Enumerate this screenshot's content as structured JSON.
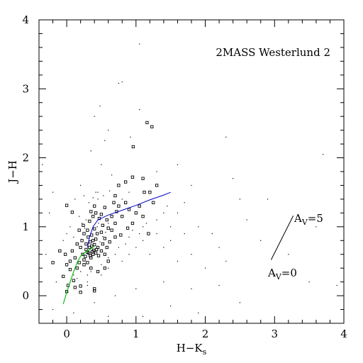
{
  "chart_data": {
    "type": "scatter",
    "title": "2MASS Westerlund 2",
    "xlabel": "H−K",
    "xlabel_sub": "s",
    "ylabel": "J−H",
    "xlim": [
      -0.4,
      4.0
    ],
    "ylim": [
      -0.4,
      4.0
    ],
    "xticks": [
      0,
      1,
      2,
      3,
      4
    ],
    "yticks": [
      0,
      1,
      2,
      3,
      4
    ],
    "xtick_labels": [
      "0",
      "1",
      "2",
      "3",
      "4"
    ],
    "ytick_labels": [
      "0",
      "1",
      "2",
      "3",
      "4"
    ],
    "grid": false,
    "colors": {
      "axes": "#000000",
      "giant_branch": "#0000cc",
      "dwarf_sequence": "#00bb00"
    },
    "reddening_vector": {
      "start_label_main": "A",
      "start_label_sub": "V",
      "start_label_rest": "=0",
      "end_label_main": "A",
      "end_label_sub": "V",
      "end_label_rest": "=5",
      "start": [
        2.95,
        0.52
      ],
      "end": [
        3.27,
        1.16
      ]
    },
    "giant_branch": [
      [
        0.3,
        0.7
      ],
      [
        0.33,
        0.85
      ],
      [
        0.38,
        1.0
      ],
      [
        0.45,
        1.1
      ],
      [
        0.6,
        1.17
      ],
      [
        0.8,
        1.24
      ],
      [
        1.0,
        1.31
      ],
      [
        1.2,
        1.39
      ],
      [
        1.4,
        1.46
      ],
      [
        1.5,
        1.5
      ]
    ],
    "dwarf_sequence": [
      [
        -0.05,
        -0.12
      ],
      [
        0.0,
        0.05
      ],
      [
        0.05,
        0.2
      ],
      [
        0.1,
        0.35
      ],
      [
        0.15,
        0.48
      ],
      [
        0.2,
        0.57
      ],
      [
        0.25,
        0.62
      ],
      [
        0.3,
        0.65
      ],
      [
        0.35,
        0.68
      ],
      [
        0.4,
        0.72
      ]
    ],
    "members": [
      [
        0.0,
        1.31
      ],
      [
        0.08,
        1.21
      ],
      [
        -0.1,
        0.65
      ],
      [
        -0.2,
        0.48
      ],
      [
        0.0,
        0.45
      ],
      [
        0.05,
        0.38
      ],
      [
        -0.05,
        0.28
      ],
      [
        0.02,
        0.15
      ],
      [
        0.12,
        0.12
      ],
      [
        0.1,
        0.22
      ],
      [
        0.2,
        0.14
      ],
      [
        0.2,
        0.05
      ],
      [
        0.4,
        0.1
      ],
      [
        0.4,
        0.07
      ],
      [
        0.0,
        0.06
      ],
      [
        0.3,
        0.48
      ],
      [
        0.25,
        0.52
      ],
      [
        0.35,
        0.55
      ],
      [
        0.38,
        0.6
      ],
      [
        0.42,
        0.62
      ],
      [
        0.3,
        0.63
      ],
      [
        0.28,
        0.67
      ],
      [
        0.33,
        0.7
      ],
      [
        0.36,
        0.72
      ],
      [
        0.4,
        0.74
      ],
      [
        0.45,
        0.7
      ],
      [
        0.28,
        0.75
      ],
      [
        0.34,
        0.78
      ],
      [
        0.38,
        0.8
      ],
      [
        0.42,
        0.82
      ],
      [
        0.31,
        0.85
      ],
      [
        0.36,
        0.88
      ],
      [
        0.44,
        0.9
      ],
      [
        0.25,
        0.9
      ],
      [
        0.3,
        0.95
      ],
      [
        0.4,
        0.97
      ],
      [
        0.5,
        0.92
      ],
      [
        0.22,
        0.8
      ],
      [
        0.2,
        0.7
      ],
      [
        0.23,
        0.6
      ],
      [
        0.46,
        0.58
      ],
      [
        0.5,
        0.65
      ],
      [
        0.52,
        0.75
      ],
      [
        0.55,
        0.83
      ],
      [
        0.27,
        0.57
      ],
      [
        0.34,
        0.58
      ],
      [
        0.39,
        0.66
      ],
      [
        0.32,
        0.62
      ],
      [
        0.37,
        0.64
      ],
      [
        0.43,
        0.67
      ],
      [
        0.15,
        0.75
      ],
      [
        0.18,
        0.95
      ],
      [
        0.24,
        1.02
      ],
      [
        0.33,
        1.08
      ],
      [
        0.38,
        1.15
      ],
      [
        0.42,
        1.2
      ],
      [
        0.47,
        1.12
      ],
      [
        0.52,
        1.02
      ],
      [
        0.58,
        1.1
      ],
      [
        0.6,
        0.98
      ],
      [
        0.65,
        1.15
      ],
      [
        0.7,
        1.05
      ],
      [
        0.72,
        1.22
      ],
      [
        0.75,
        1.3
      ],
      [
        0.68,
        1.35
      ],
      [
        0.55,
        1.28
      ],
      [
        0.5,
        1.18
      ],
      [
        0.4,
        1.3
      ],
      [
        0.35,
        1.22
      ],
      [
        0.8,
        1.15
      ],
      [
        0.85,
        1.35
      ],
      [
        0.9,
        1.25
      ],
      [
        1.0,
        1.2
      ],
      [
        1.05,
        1.3
      ],
      [
        1.1,
        1.15
      ],
      [
        0.95,
        1.05
      ],
      [
        0.88,
        0.98
      ],
      [
        0.78,
        0.88
      ],
      [
        0.7,
        0.85
      ],
      [
        0.62,
        0.78
      ],
      [
        0.58,
        0.7
      ],
      [
        0.65,
        0.95
      ],
      [
        0.75,
        1.6
      ],
      [
        0.7,
        1.45
      ],
      [
        0.85,
        1.65
      ],
      [
        0.95,
        1.72
      ],
      [
        1.1,
        1.7
      ],
      [
        1.2,
        1.5
      ],
      [
        1.3,
        1.6
      ],
      [
        0.96,
        2.16
      ],
      [
        1.16,
        2.51
      ],
      [
        1.23,
        2.45
      ],
      [
        1.12,
        1.5
      ],
      [
        1.25,
        1.35
      ],
      [
        1.18,
        0.9
      ],
      [
        0.6,
        0.5
      ],
      [
        0.55,
        0.4
      ],
      [
        0.45,
        0.35
      ],
      [
        0.35,
        0.4
      ],
      [
        0.25,
        0.45
      ],
      [
        0.55,
        0.6
      ],
      [
        0.15,
        0.4
      ],
      [
        0.05,
        0.5
      ],
      [
        -0.02,
        0.6
      ],
      [
        0.08,
        0.65
      ],
      [
        0.12,
        0.55
      ],
      [
        0.18,
        0.48
      ]
    ],
    "field": [
      [
        0.1,
        0.3
      ],
      [
        0.3,
        0.2
      ],
      [
        0.5,
        0.3
      ],
      [
        0.6,
        0.4
      ],
      [
        0.8,
        0.5
      ],
      [
        0.9,
        0.6
      ],
      [
        1.0,
        0.7
      ],
      [
        1.1,
        0.8
      ],
      [
        1.2,
        0.6
      ],
      [
        1.3,
        0.9
      ],
      [
        1.4,
        0.7
      ],
      [
        1.5,
        0.8
      ],
      [
        1.6,
        0.5
      ],
      [
        1.7,
        0.9
      ],
      [
        1.8,
        0.6
      ],
      [
        1.9,
        1.0
      ],
      [
        2.0,
        0.4
      ],
      [
        2.1,
        0.9
      ],
      [
        2.2,
        0.7
      ],
      [
        2.3,
        0.5
      ],
      [
        1.3,
        1.8
      ],
      [
        1.6,
        1.9
      ],
      [
        1.8,
        1.6
      ],
      [
        2.3,
        2.3
      ],
      [
        2.4,
        1.7
      ],
      [
        2.5,
        1.4
      ],
      [
        2.6,
        1.1
      ],
      [
        2.8,
        0.8
      ],
      [
        2.9,
        1.4
      ],
      [
        3.0,
        0.3
      ],
      [
        3.2,
        0.6
      ],
      [
        3.5,
        0.2
      ],
      [
        3.6,
        1.0
      ],
      [
        3.9,
        0.15
      ],
      [
        3.7,
        2.05
      ],
      [
        2.2,
        0.15
      ],
      [
        -0.3,
        0.6
      ],
      [
        -0.35,
        1.9
      ],
      [
        -0.2,
        1.5
      ],
      [
        -0.25,
        1.2
      ],
      [
        -0.15,
        0.2
      ],
      [
        -0.3,
        0.0
      ],
      [
        -0.2,
        -0.2
      ],
      [
        0.1,
        -0.25
      ],
      [
        0.4,
        -0.1
      ],
      [
        0.7,
        0.0
      ],
      [
        1.0,
        0.1
      ],
      [
        1.4,
        0.2
      ],
      [
        1.8,
        0.1
      ],
      [
        2.5,
        -0.1
      ],
      [
        1.5,
        -0.15
      ],
      [
        0.6,
        -0.3
      ],
      [
        1.1,
        -0.3
      ],
      [
        1.9,
        -0.25
      ],
      [
        0.5,
        1.9
      ],
      [
        0.4,
        2.6
      ],
      [
        0.35,
        2.1
      ],
      [
        0.45,
        1.5
      ],
      [
        0.2,
        1.6
      ],
      [
        0.6,
        2.4
      ],
      [
        0.65,
        1.75
      ],
      [
        0.75,
        3.08
      ],
      [
        0.8,
        3.1
      ],
      [
        1.05,
        3.65
      ],
      [
        0.92,
        2.3
      ],
      [
        1.05,
        2.7
      ],
      [
        0.55,
        2.25
      ],
      [
        0.48,
        2.75
      ],
      [
        0.0,
        0.9
      ],
      [
        0.05,
        1.0
      ],
      [
        -0.05,
        0.8
      ],
      [
        0.1,
        0.85
      ],
      [
        0.12,
        1.4
      ],
      [
        0.25,
        1.45
      ],
      [
        0.45,
        1.4
      ],
      [
        0.62,
        1.52
      ],
      [
        0.8,
        1.4
      ],
      [
        0.9,
        1.5
      ],
      [
        1.15,
        1.05
      ],
      [
        1.3,
        1.1
      ],
      [
        1.4,
        1.2
      ],
      [
        1.5,
        1.0
      ],
      [
        1.45,
        1.3
      ],
      [
        1.6,
        1.2
      ],
      [
        1.7,
        1.35
      ],
      [
        0.3,
        0.3
      ],
      [
        0.35,
        0.35
      ],
      [
        0.5,
        0.45
      ],
      [
        0.6,
        0.55
      ],
      [
        0.7,
        0.6
      ],
      [
        0.75,
        0.7
      ],
      [
        0.85,
        0.75
      ],
      [
        0.9,
        0.85
      ],
      [
        1.05,
        0.9
      ],
      [
        1.1,
        1.0
      ],
      [
        0.95,
        0.95
      ],
      [
        0.2,
        0.35
      ],
      [
        0.15,
        0.25
      ],
      [
        0.05,
        0.2
      ],
      [
        0.3,
        0.15
      ],
      [
        0.48,
        0.78
      ],
      [
        0.52,
        0.86
      ],
      [
        0.56,
        0.92
      ],
      [
        0.6,
        1.05
      ],
      [
        0.46,
        1.05
      ],
      [
        0.44,
        1.0
      ],
      [
        0.26,
        0.98
      ],
      [
        0.28,
        1.1
      ],
      [
        0.22,
        1.05
      ],
      [
        0.18,
        1.15
      ],
      [
        0.32,
        1.35
      ],
      [
        0.38,
        1.42
      ],
      [
        0.42,
        1.5
      ],
      [
        0.53,
        1.45
      ]
    ]
  }
}
